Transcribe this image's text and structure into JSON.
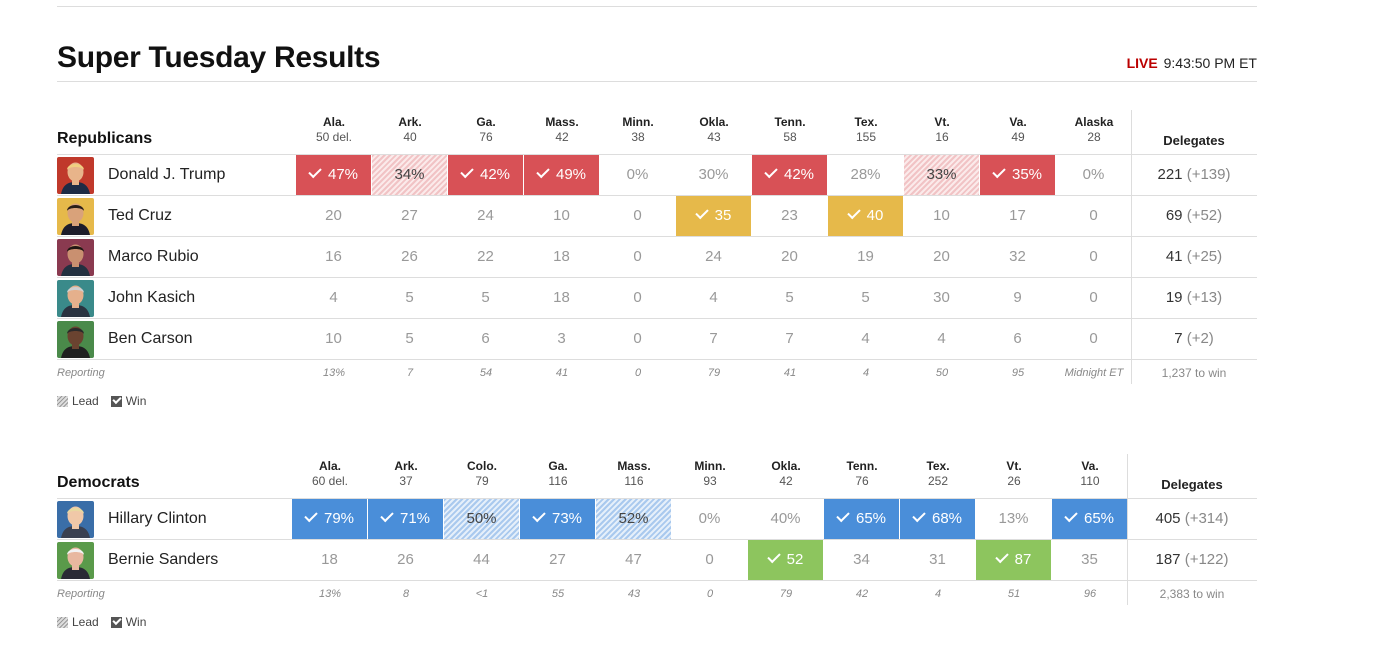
{
  "title": "Super Tuesday Results",
  "live": {
    "tag": "LIVE",
    "time": "9:43:50 PM ET"
  },
  "labels": {
    "delegates": "Delegates",
    "reporting": "Reporting",
    "lead": "Lead",
    "win": "Win"
  },
  "colors": {
    "rep_win": "#d85156",
    "rep_lead": "#f1c3c5",
    "cruz_win": "#e6b94a",
    "dem_win": "#4a8ed9",
    "dem_lead": "#a9c9ee",
    "sanders_win": "#8dc55e"
  },
  "republicans": {
    "party": "Republicans",
    "states": [
      {
        "name": "Ala.",
        "del": "50 del."
      },
      {
        "name": "Ark.",
        "del": "40"
      },
      {
        "name": "Ga.",
        "del": "76"
      },
      {
        "name": "Mass.",
        "del": "42"
      },
      {
        "name": "Minn.",
        "del": "38"
      },
      {
        "name": "Okla.",
        "del": "43"
      },
      {
        "name": "Tenn.",
        "del": "58"
      },
      {
        "name": "Tex.",
        "del": "155"
      },
      {
        "name": "Vt.",
        "del": "16"
      },
      {
        "name": "Va.",
        "del": "49"
      },
      {
        "name": "Alaska",
        "del": "28"
      }
    ],
    "candidates": [
      {
        "name": "Donald J. Trump",
        "avatar": "trump",
        "total": "221",
        "gain": "(+139)",
        "cells": [
          {
            "v": "47%",
            "s": "win"
          },
          {
            "v": "34%",
            "s": "lead"
          },
          {
            "v": "42%",
            "s": "win"
          },
          {
            "v": "49%",
            "s": "win"
          },
          {
            "v": "0%",
            "s": ""
          },
          {
            "v": "30%",
            "s": ""
          },
          {
            "v": "42%",
            "s": "win"
          },
          {
            "v": "28%",
            "s": ""
          },
          {
            "v": "33%",
            "s": "lead"
          },
          {
            "v": "35%",
            "s": "win"
          },
          {
            "v": "0%",
            "s": ""
          }
        ]
      },
      {
        "name": "Ted Cruz",
        "avatar": "cruz",
        "total": "69",
        "gain": "(+52)",
        "cells": [
          {
            "v": "20",
            "s": ""
          },
          {
            "v": "27",
            "s": ""
          },
          {
            "v": "24",
            "s": ""
          },
          {
            "v": "10",
            "s": ""
          },
          {
            "v": "0",
            "s": ""
          },
          {
            "v": "35",
            "s": "win"
          },
          {
            "v": "23",
            "s": ""
          },
          {
            "v": "40",
            "s": "win"
          },
          {
            "v": "10",
            "s": ""
          },
          {
            "v": "17",
            "s": ""
          },
          {
            "v": "0",
            "s": ""
          }
        ]
      },
      {
        "name": "Marco Rubio",
        "avatar": "rubio",
        "total": "41",
        "gain": "(+25)",
        "cells": [
          {
            "v": "16",
            "s": ""
          },
          {
            "v": "26",
            "s": ""
          },
          {
            "v": "22",
            "s": ""
          },
          {
            "v": "18",
            "s": ""
          },
          {
            "v": "0",
            "s": ""
          },
          {
            "v": "24",
            "s": ""
          },
          {
            "v": "20",
            "s": ""
          },
          {
            "v": "19",
            "s": ""
          },
          {
            "v": "20",
            "s": ""
          },
          {
            "v": "32",
            "s": ""
          },
          {
            "v": "0",
            "s": ""
          }
        ]
      },
      {
        "name": "John Kasich",
        "avatar": "kasich",
        "total": "19",
        "gain": "(+13)",
        "cells": [
          {
            "v": "4",
            "s": ""
          },
          {
            "v": "5",
            "s": ""
          },
          {
            "v": "5",
            "s": ""
          },
          {
            "v": "18",
            "s": ""
          },
          {
            "v": "0",
            "s": ""
          },
          {
            "v": "4",
            "s": ""
          },
          {
            "v": "5",
            "s": ""
          },
          {
            "v": "5",
            "s": ""
          },
          {
            "v": "30",
            "s": ""
          },
          {
            "v": "9",
            "s": ""
          },
          {
            "v": "0",
            "s": ""
          }
        ]
      },
      {
        "name": "Ben Carson",
        "avatar": "carson",
        "total": "7",
        "gain": "(+2)",
        "cells": [
          {
            "v": "10",
            "s": ""
          },
          {
            "v": "5",
            "s": ""
          },
          {
            "v": "6",
            "s": ""
          },
          {
            "v": "3",
            "s": ""
          },
          {
            "v": "0",
            "s": ""
          },
          {
            "v": "7",
            "s": ""
          },
          {
            "v": "7",
            "s": ""
          },
          {
            "v": "4",
            "s": ""
          },
          {
            "v": "4",
            "s": ""
          },
          {
            "v": "6",
            "s": ""
          },
          {
            "v": "0",
            "s": ""
          }
        ]
      }
    ],
    "reporting": [
      "13%",
      "7",
      "54",
      "41",
      "0",
      "79",
      "41",
      "4",
      "50",
      "95",
      "Midnight ET"
    ],
    "to_win": "1,237 to win"
  },
  "democrats": {
    "party": "Democrats",
    "states": [
      {
        "name": "Ala.",
        "del": "60 del."
      },
      {
        "name": "Ark.",
        "del": "37"
      },
      {
        "name": "Colo.",
        "del": "79"
      },
      {
        "name": "Ga.",
        "del": "116"
      },
      {
        "name": "Mass.",
        "del": "116"
      },
      {
        "name": "Minn.",
        "del": "93"
      },
      {
        "name": "Okla.",
        "del": "42"
      },
      {
        "name": "Tenn.",
        "del": "76"
      },
      {
        "name": "Tex.",
        "del": "252"
      },
      {
        "name": "Vt.",
        "del": "26"
      },
      {
        "name": "Va.",
        "del": "110"
      }
    ],
    "candidates": [
      {
        "name": "Hillary Clinton",
        "avatar": "clinton",
        "total": "405",
        "gain": "(+314)",
        "cells": [
          {
            "v": "79%",
            "s": "win"
          },
          {
            "v": "71%",
            "s": "win"
          },
          {
            "v": "50%",
            "s": "lead"
          },
          {
            "v": "73%",
            "s": "win"
          },
          {
            "v": "52%",
            "s": "lead"
          },
          {
            "v": "0%",
            "s": ""
          },
          {
            "v": "40%",
            "s": ""
          },
          {
            "v": "65%",
            "s": "win"
          },
          {
            "v": "68%",
            "s": "win"
          },
          {
            "v": "13%",
            "s": ""
          },
          {
            "v": "65%",
            "s": "win"
          }
        ]
      },
      {
        "name": "Bernie Sanders",
        "avatar": "sanders",
        "total": "187",
        "gain": "(+122)",
        "cells": [
          {
            "v": "18",
            "s": ""
          },
          {
            "v": "26",
            "s": ""
          },
          {
            "v": "44",
            "s": ""
          },
          {
            "v": "27",
            "s": ""
          },
          {
            "v": "47",
            "s": ""
          },
          {
            "v": "0",
            "s": ""
          },
          {
            "v": "52",
            "s": "win"
          },
          {
            "v": "34",
            "s": ""
          },
          {
            "v": "31",
            "s": ""
          },
          {
            "v": "87",
            "s": "win"
          },
          {
            "v": "35",
            "s": ""
          }
        ]
      }
    ],
    "reporting": [
      "13%",
      "8",
      "<1",
      "55",
      "43",
      "0",
      "79",
      "42",
      "4",
      "51",
      "96"
    ],
    "to_win": "2,383 to win"
  }
}
